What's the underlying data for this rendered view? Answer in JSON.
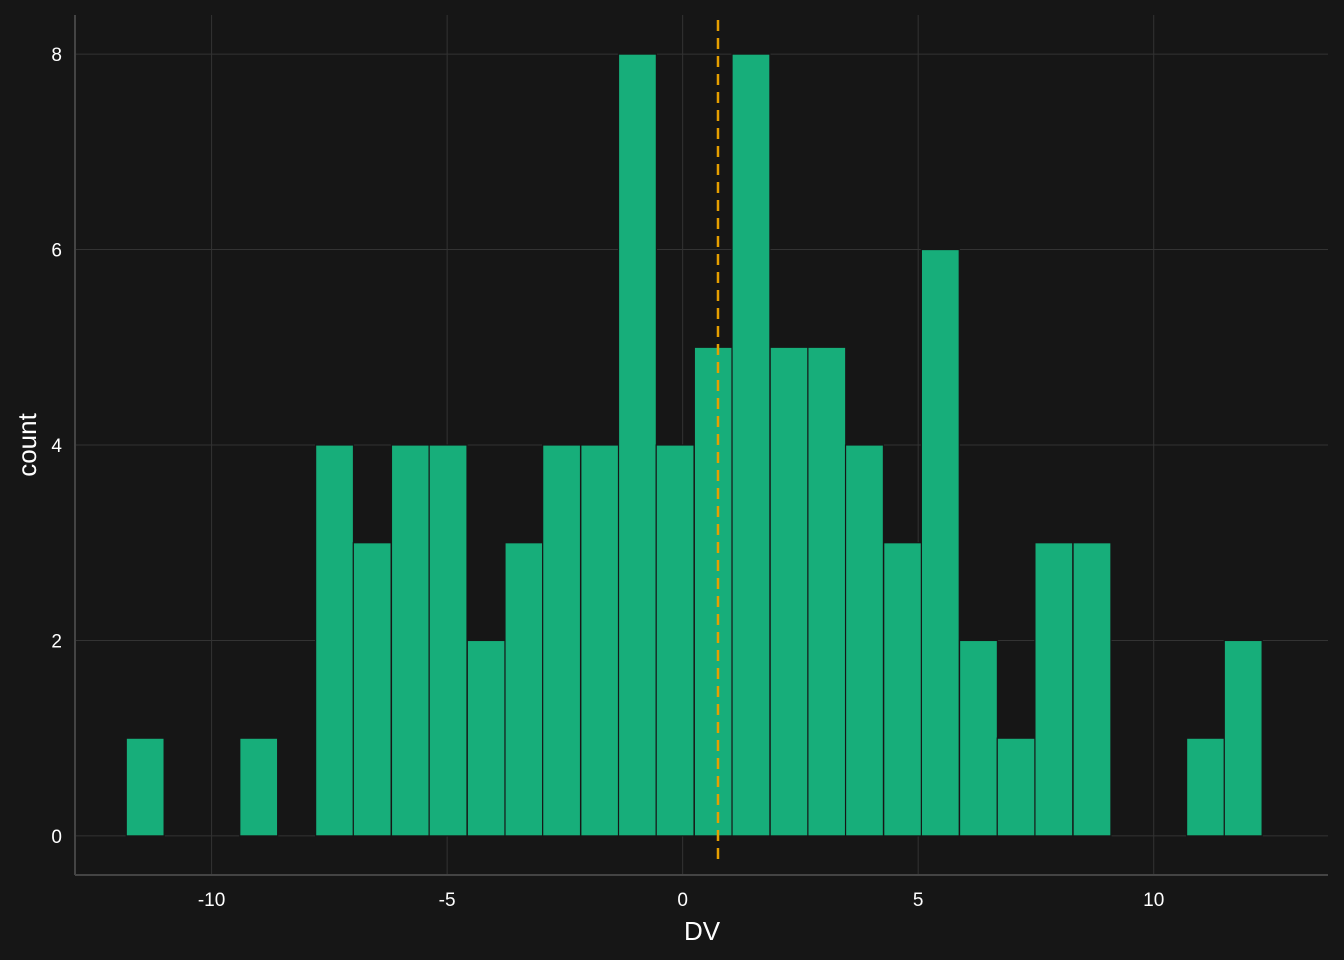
{
  "chart_data": {
    "type": "bar",
    "subtype": "histogram",
    "xlabel": "DV",
    "ylabel": "count",
    "xlim": [
      -12.9,
      13.7
    ],
    "ylim": [
      -0.4,
      8.4
    ],
    "x_ticks": [
      -10,
      -5,
      0,
      5,
      10
    ],
    "x_tick_labels": [
      "-10",
      "-5",
      "0",
      "5",
      "10"
    ],
    "y_ticks": [
      0,
      2,
      4,
      6,
      8
    ],
    "y_tick_labels": [
      "0",
      "2",
      "4",
      "6",
      "8"
    ],
    "grid": true,
    "bin_width": 0.804,
    "bins": [
      {
        "center": -11.41,
        "count": 1
      },
      {
        "center": -10.6,
        "count": 0
      },
      {
        "center": -9.8,
        "count": 0
      },
      {
        "center": -9.0,
        "count": 1
      },
      {
        "center": -8.19,
        "count": 0
      },
      {
        "center": -7.39,
        "count": 4
      },
      {
        "center": -6.59,
        "count": 3
      },
      {
        "center": -5.78,
        "count": 4
      },
      {
        "center": -4.98,
        "count": 4
      },
      {
        "center": -4.17,
        "count": 2
      },
      {
        "center": -3.37,
        "count": 3
      },
      {
        "center": -2.57,
        "count": 4
      },
      {
        "center": -1.76,
        "count": 4
      },
      {
        "center": -0.96,
        "count": 8
      },
      {
        "center": -0.16,
        "count": 4
      },
      {
        "center": 0.65,
        "count": 5
      },
      {
        "center": 1.45,
        "count": 8
      },
      {
        "center": 2.26,
        "count": 5
      },
      {
        "center": 3.06,
        "count": 5
      },
      {
        "center": 3.86,
        "count": 4
      },
      {
        "center": 4.67,
        "count": 3
      },
      {
        "center": 5.47,
        "count": 6
      },
      {
        "center": 6.28,
        "count": 2
      },
      {
        "center": 7.08,
        "count": 1
      },
      {
        "center": 7.88,
        "count": 3
      },
      {
        "center": 8.69,
        "count": 3
      },
      {
        "center": 9.49,
        "count": 0
      },
      {
        "center": 10.3,
        "count": 0
      },
      {
        "center": 11.1,
        "count": 1
      },
      {
        "center": 11.9,
        "count": 2
      }
    ],
    "reference_line": {
      "x": 0.75,
      "style": "dashed",
      "color": "#e69f00"
    },
    "colors": {
      "bar_fill": "#17ae7a",
      "bar_outline": "#161616",
      "background": "#161616",
      "grid": "#333333",
      "axis_line": "#444444",
      "text": "#ffffff"
    }
  }
}
